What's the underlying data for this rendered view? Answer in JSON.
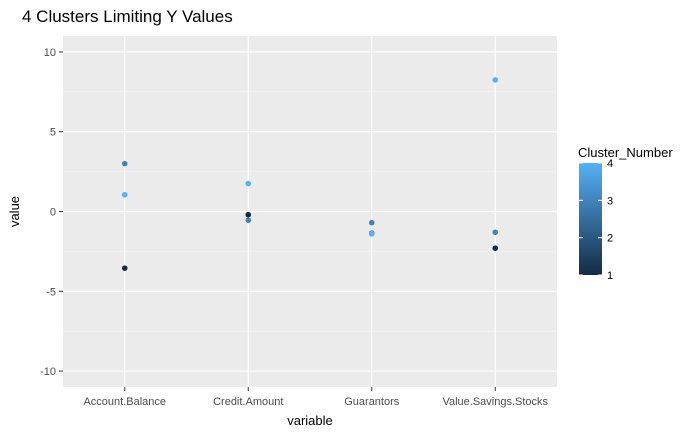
{
  "chart_data": {
    "type": "scatter",
    "title": "4 Clusters Limiting Y Values",
    "xlabel": "variable",
    "ylabel": "value",
    "categories": [
      "Account.Balance",
      "Credit.Amount",
      "Guarantors",
      "Value.Savings.Stocks"
    ],
    "ylim": [
      -11,
      11
    ],
    "y_ticks": [
      -10,
      -5,
      0,
      5,
      10
    ],
    "grid": true,
    "points": [
      {
        "category": "Account.Balance",
        "y": 3.0,
        "cluster": 3
      },
      {
        "category": "Account.Balance",
        "y": 1.05,
        "cluster": 4
      },
      {
        "category": "Account.Balance",
        "y": -3.55,
        "cluster": 1
      },
      {
        "category": "Credit.Amount",
        "y": 1.75,
        "cluster": 4
      },
      {
        "category": "Credit.Amount",
        "y": -0.2,
        "cluster": 1
      },
      {
        "category": "Credit.Amount",
        "y": -0.55,
        "cluster": 3
      },
      {
        "category": "Guarantors",
        "y": -0.7,
        "cluster": 3
      },
      {
        "category": "Guarantors",
        "y": -1.35,
        "cluster": 3
      },
      {
        "category": "Guarantors",
        "y": -1.4,
        "cluster": 4
      },
      {
        "category": "Value.Savings.Stocks",
        "y": 8.25,
        "cluster": 4
      },
      {
        "category": "Value.Savings.Stocks",
        "y": -1.3,
        "cluster": 3
      },
      {
        "category": "Value.Savings.Stocks",
        "y": -2.3,
        "cluster": 1
      }
    ],
    "legend": {
      "title": "Cluster_Number",
      "placement": "right",
      "type": "continuous",
      "breaks": [
        1,
        2,
        3,
        4
      ],
      "colors": {
        "low": "#132B43",
        "high": "#56B1F7"
      }
    },
    "colors": {
      "panel_background": "#EBEBEB",
      "grid_major": "#FFFFFF",
      "tick_text": "#4D4D4D"
    }
  }
}
